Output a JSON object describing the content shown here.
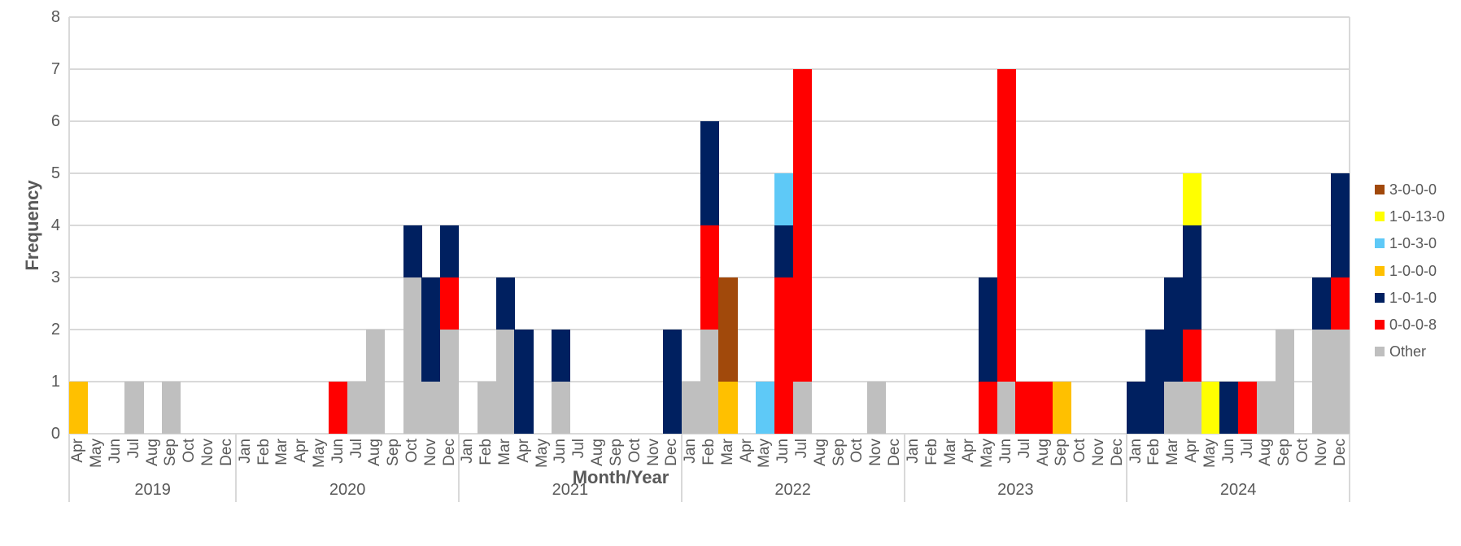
{
  "axis": {
    "x_title": "Month/Year",
    "y_title": "Frequency"
  },
  "colors": {
    "grid": "#D9D9D9",
    "text": "#595959",
    "background": "#FFFFFF"
  },
  "chart_data": {
    "type": "bar",
    "stacked": true,
    "title": "",
    "xlabel": "Month/Year",
    "ylabel": "Frequency",
    "ylim": [
      0,
      8
    ],
    "yticks": [
      0,
      1,
      2,
      3,
      4,
      5,
      6,
      7,
      8
    ],
    "grid": "horizontal",
    "legend_position": "right",
    "years": [
      {
        "label": "2019",
        "months": [
          "Apr",
          "May",
          "Jun",
          "Jul",
          "Aug",
          "Sep",
          "Oct",
          "Nov",
          "Dec"
        ]
      },
      {
        "label": "2020",
        "months": [
          "Jan",
          "Feb",
          "Mar",
          "Apr",
          "May",
          "Jun",
          "Jul",
          "Aug",
          "Sep",
          "Oct",
          "Nov",
          "Dec"
        ]
      },
      {
        "label": "2021",
        "months": [
          "Jan",
          "Feb",
          "Mar",
          "Apr",
          "May",
          "Jun",
          "Jul",
          "Aug",
          "Sep",
          "Oct",
          "Nov",
          "Dec"
        ]
      },
      {
        "label": "2022",
        "months": [
          "Jan",
          "Feb",
          "Mar",
          "Apr",
          "May",
          "Jun",
          "Jul",
          "Aug",
          "Sep",
          "Oct",
          "Nov",
          "Dec"
        ]
      },
      {
        "label": "2023",
        "months": [
          "Jan",
          "Feb",
          "Mar",
          "Apr",
          "May",
          "Jun",
          "Jul",
          "Aug",
          "Sep",
          "Oct",
          "Nov",
          "Dec"
        ]
      },
      {
        "label": "2024",
        "months": [
          "Jan",
          "Feb",
          "Mar",
          "Apr",
          "May",
          "Jun",
          "Jul",
          "Aug",
          "Sep",
          "Oct",
          "Nov",
          "Dec"
        ]
      }
    ],
    "stack_order_bottom_to_top": [
      "Other",
      "0-0-0-8",
      "1-0-1-0",
      "1-0-0-0",
      "1-0-3-0",
      "1-0-13-0",
      "3-0-0-0"
    ],
    "series": [
      {
        "name": "3-0-0-0",
        "color": "#A1490B",
        "values": {
          "2022-Mar": 2
        }
      },
      {
        "name": "1-0-13-0",
        "color": "#FFFF00",
        "values": {
          "2024-Apr": 1,
          "2024-May": 1
        }
      },
      {
        "name": "1-0-3-0",
        "color": "#5EC9F7",
        "values": {
          "2022-May": 1,
          "2022-Jun": 1
        }
      },
      {
        "name": "1-0-0-0",
        "color": "#FFC000",
        "values": {
          "2019-Apr": 1,
          "2022-Mar": 1,
          "2023-Sep": 1
        }
      },
      {
        "name": "1-0-1-0",
        "color": "#002060",
        "values": {
          "2020-Oct": 1,
          "2020-Nov": 2,
          "2020-Dec": 1,
          "2021-Mar": 1,
          "2021-Apr": 2,
          "2021-Jun": 1,
          "2021-Dec": 2,
          "2022-Feb": 2,
          "2022-Jun": 1,
          "2023-May": 2,
          "2024-Jan": 1,
          "2024-Feb": 2,
          "2024-Mar": 2,
          "2024-Apr": 2,
          "2024-Jun": 1,
          "2024-Nov": 1,
          "2024-Dec": 2
        }
      },
      {
        "name": "0-0-0-8",
        "color": "#FF0000",
        "values": {
          "2020-Jun": 1,
          "2020-Dec": 1,
          "2022-Feb": 2,
          "2022-Jun": 3,
          "2022-Jul": 6,
          "2023-May": 1,
          "2023-Jun": 6,
          "2023-Jul": 1,
          "2023-Aug": 1,
          "2024-Apr": 1,
          "2024-Jul": 1,
          "2024-Dec": 1
        }
      },
      {
        "name": "Other",
        "color": "#BFBFBF",
        "values": {
          "2019-Jul": 1,
          "2019-Sep": 1,
          "2020-Jul": 1,
          "2020-Aug": 2,
          "2020-Oct": 3,
          "2020-Nov": 1,
          "2020-Dec": 2,
          "2021-Feb": 1,
          "2021-Mar": 2,
          "2021-Jun": 1,
          "2022-Jan": 1,
          "2022-Feb": 2,
          "2022-Jul": 1,
          "2022-Nov": 1,
          "2023-Jun": 1,
          "2024-Mar": 1,
          "2024-Apr": 1,
          "2024-Aug": 1,
          "2024-Sep": 2,
          "2024-Nov": 2,
          "2024-Dec": 2
        }
      }
    ]
  }
}
